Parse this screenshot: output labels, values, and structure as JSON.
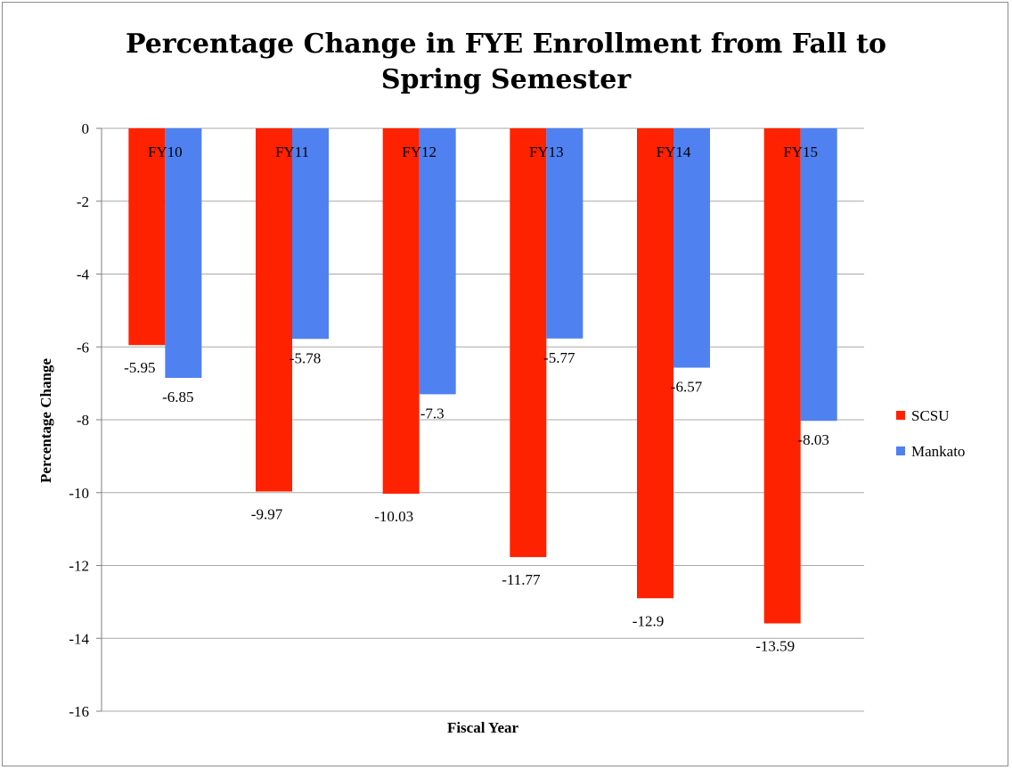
{
  "chart_data": {
    "type": "bar",
    "title": "Percentage Change in FYE Enrollment from Fall to Spring Semester",
    "title_lines": [
      "Percentage Change in FYE Enrollment from Fall to",
      "Spring Semester"
    ],
    "xlabel": "Fiscal Year",
    "ylabel": "Percentage Change",
    "categories": [
      "FY10",
      "FY11",
      "FY12",
      "FY13",
      "FY14",
      "FY15"
    ],
    "series": [
      {
        "name": "SCSU",
        "color": "#ff2200",
        "values": [
          -5.95,
          -9.97,
          -10.03,
          -11.77,
          -12.9,
          -13.59
        ]
      },
      {
        "name": "Mankato",
        "color": "#4f81f0",
        "values": [
          -6.85,
          -5.78,
          -7.3,
          -5.77,
          -6.57,
          -8.03
        ]
      }
    ],
    "ylim": [
      -16,
      0
    ],
    "yticks": [
      0,
      -2,
      -4,
      -6,
      -8,
      -10,
      -12,
      -14,
      -16
    ],
    "grid": true,
    "legend": "right"
  }
}
